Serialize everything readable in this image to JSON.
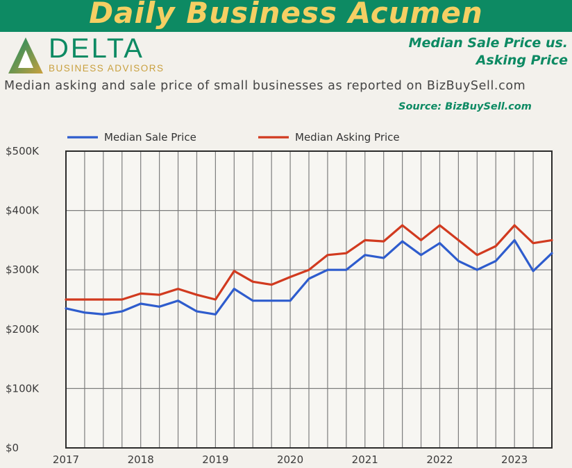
{
  "banner": {
    "title": "Daily Business Acumen"
  },
  "logo": {
    "word": "DELTA",
    "sub": "BUSINESS ADVISORS"
  },
  "headline": {
    "line1": "Median Sale Price us.",
    "line2": "Asking Price"
  },
  "subtitle": "Median asking and sale price of small businesses as reported on BizBuySell.com",
  "source": "Source: BizBuySell.com",
  "colors": {
    "brand_green": "#0d8a63",
    "gold": "#f5cf63",
    "sale": "#2e5ccd",
    "asking": "#d13a1f"
  },
  "chart_data": {
    "type": "line",
    "x": [
      2017.0,
      2017.25,
      2017.5,
      2017.75,
      2018.0,
      2018.25,
      2018.5,
      2018.75,
      2019.0,
      2019.25,
      2019.5,
      2019.75,
      2020.0,
      2020.25,
      2020.5,
      2020.75,
      2021.0,
      2021.25,
      2021.5,
      2021.75,
      2022.0,
      2022.25,
      2022.5,
      2022.75,
      2023.0,
      2023.25,
      2023.5
    ],
    "series": [
      {
        "name": "Median Sale Price",
        "color": "#2e5ccd",
        "values": [
          235000,
          228000,
          225000,
          230000,
          243000,
          238000,
          248000,
          230000,
          225000,
          268000,
          248000,
          248000,
          248000,
          285000,
          300000,
          300000,
          325000,
          320000,
          348000,
          325000,
          345000,
          315000,
          300000,
          315000,
          350000,
          298000,
          328000
        ]
      },
      {
        "name": "Median Asking Price",
        "color": "#d13a1f",
        "values": [
          250000,
          250000,
          250000,
          250000,
          260000,
          258000,
          268000,
          258000,
          250000,
          298000,
          280000,
          275000,
          288000,
          300000,
          325000,
          328000,
          350000,
          348000,
          375000,
          350000,
          375000,
          350000,
          325000,
          340000,
          375000,
          345000,
          350000
        ]
      }
    ],
    "x_ticks": [
      "2017",
      "2018",
      "2019",
      "2020",
      "2021",
      "2022",
      "2023"
    ],
    "y_ticks": [
      "$0",
      "$100K",
      "$200K",
      "$300K",
      "$400K",
      "$500K"
    ],
    "ylim": [
      0,
      500000
    ],
    "xlim": [
      2017,
      2023.5
    ],
    "grid": true,
    "legend_placement": "top"
  }
}
